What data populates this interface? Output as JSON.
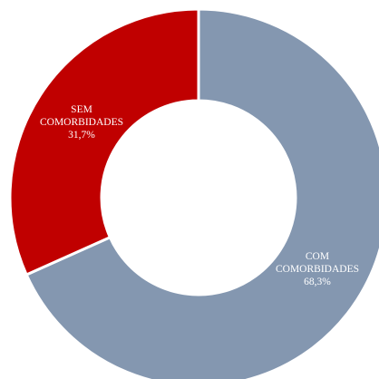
{
  "chart_data": {
    "type": "pie",
    "donut": true,
    "title": "",
    "legend": "none",
    "slices": [
      {
        "label_lines": [
          "COM",
          "COMORBIDADES",
          "68,3%"
        ],
        "value": 68.3,
        "color": "#8497B0"
      },
      {
        "label_lines": [
          "SEM",
          "COMORBIDADES",
          "31,7%"
        ],
        "value": 31.7,
        "color": "#C00000"
      }
    ],
    "start_angle": "12 o'clock",
    "direction": "clockwise",
    "separator_color": "#ffffff"
  }
}
